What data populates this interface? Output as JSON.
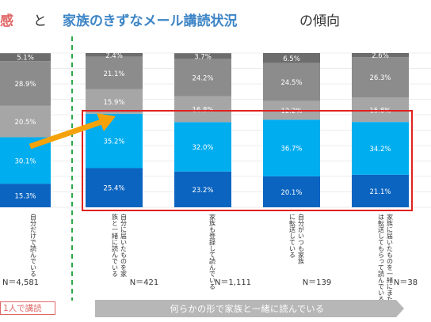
{
  "title": {
    "part1": "感",
    "part2": "と",
    "part3": "家族のきずなメール講読状況",
    "part4": "の傾向",
    "accent_color": "#e06666",
    "blue_color": "#3d85c6"
  },
  "bottom": {
    "left_label": "1人で講読",
    "right_label": "何らかの形で家族と一緒に読んでいる"
  },
  "chart_data": {
    "type": "bar",
    "stacked": true,
    "y_unit": "%",
    "ylim": [
      0,
      100
    ],
    "categories": [
      "自分だけで読んでいる",
      "自分に届いたものを家族と一緒に読んでいる",
      "家族も登録して読んでいる",
      "自分がいつも家族に転送している",
      "家族に届いたものを一緒にまたは転送してもらって読んでいる"
    ],
    "n_labels": [
      "N＝4,581",
      "N＝421",
      "N＝1,111",
      "N＝139",
      "N＝38"
    ],
    "segment_colors": [
      "#0b64c0",
      "#00adef",
      "#a6a6a6",
      "#8c8c8c",
      "#6d6d6d"
    ],
    "series": [
      {
        "values": [
          15.3,
          25.4,
          23.2,
          20.1,
          21.1
        ]
      },
      {
        "values": [
          30.1,
          35.2,
          32.0,
          36.7,
          34.2
        ]
      },
      {
        "values": [
          20.5,
          15.9,
          16.8,
          12.2,
          15.8
        ]
      },
      {
        "values": [
          28.9,
          21.1,
          24.2,
          24.5,
          26.3
        ]
      },
      {
        "values": [
          5.1,
          2.4,
          3.7,
          6.5,
          2.6
        ]
      }
    ]
  }
}
